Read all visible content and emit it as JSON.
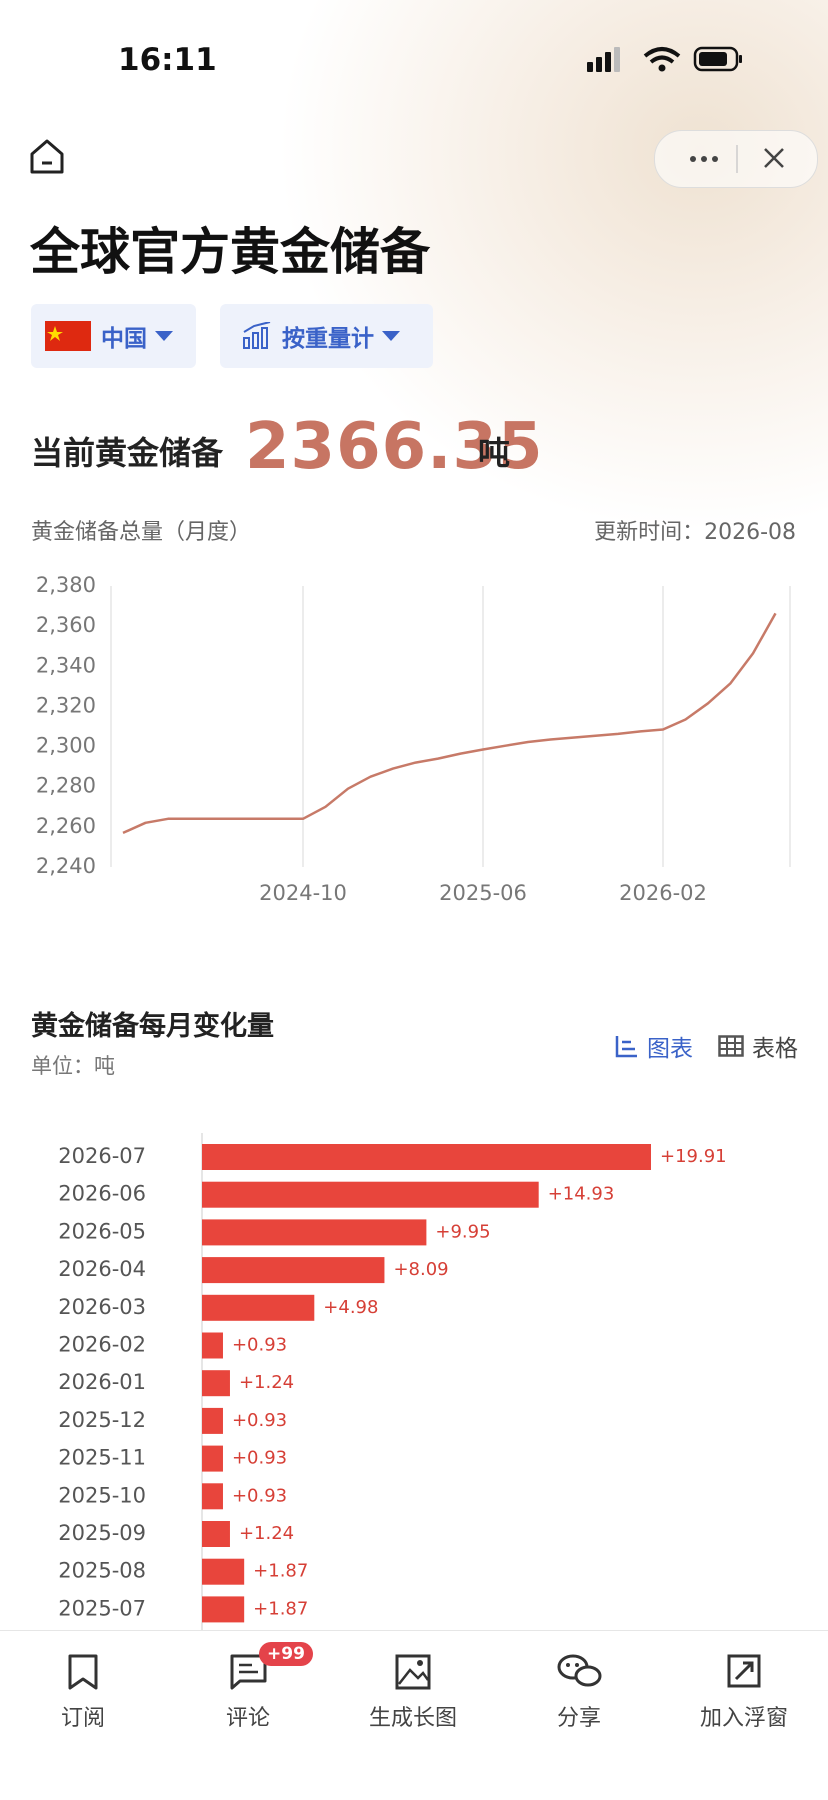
{
  "status_bar": {
    "time": "16:11"
  },
  "header": {
    "title": "全球官方黄金储备",
    "country": "中国",
    "measure": "按重量计"
  },
  "summary": {
    "label": "当前黄金储备",
    "value": 2366.35,
    "unit": "吨"
  },
  "view_toggle": {
    "chart": "图表",
    "table": "表格"
  },
  "nav": {
    "items": [
      "订阅",
      "评论",
      "生成长图",
      "分享",
      "加入浮窗"
    ],
    "badge": "+99"
  },
  "chart_data": [
    {
      "type": "line",
      "title": "黄金储备总量（月度）",
      "subtitle": "更新时间：2026-08",
      "categories": [
        null,
        null,
        null,
        null,
        null,
        null,
        null,
        null,
        "2024-10",
        null,
        null,
        null,
        null,
        null,
        null,
        null,
        "2025-06",
        null,
        null,
        null,
        null,
        null,
        null,
        null,
        "2026-02",
        null,
        null,
        null,
        null,
        null
      ],
      "values": [
        2257,
        2262,
        2264,
        2264,
        2264,
        2264,
        2264,
        2264,
        2264,
        2270,
        2279,
        2285,
        2289,
        2292,
        2294,
        2296.5,
        2298.55,
        2300.42,
        2302.29,
        2303.53,
        2304.46,
        2305.39,
        2306.32,
        2307.56,
        2308.49,
        2313.47,
        2321.56,
        2331.51,
        2346.44,
        2366.35
      ],
      "color": "#c77a68",
      "ylim": [
        2240,
        2380
      ],
      "yticks": [
        {
          "value": 2240,
          "label": "2,240"
        },
        {
          "value": 2260,
          "label": "2,260"
        },
        {
          "value": 2280,
          "label": "2,280"
        },
        {
          "value": 2300,
          "label": "2,300"
        },
        {
          "value": 2320,
          "label": "2,320"
        },
        {
          "value": 2340,
          "label": "2,340"
        },
        {
          "value": 2360,
          "label": "2,360"
        },
        {
          "value": 2380,
          "label": "2,380"
        }
      ],
      "grid": true
    },
    {
      "type": "hbar",
      "title": "黄金储备每月变化量",
      "subtitle": "单位：吨",
      "categories": [
        "2026-07",
        "2026-06",
        "2026-05",
        "2026-04",
        "2026-03",
        "2026-02",
        "2026-01",
        "2025-12",
        "2025-11",
        "2025-10",
        "2025-09",
        "2025-08",
        "2025-07"
      ],
      "values": [
        19.91,
        14.93,
        9.95,
        8.09,
        4.98,
        0.93,
        1.24,
        0.93,
        0.93,
        0.93,
        1.24,
        1.87,
        1.87
      ],
      "value_labels": [
        "+19.91",
        "+14.93",
        "+9.95",
        "+8.09",
        "+4.98",
        "+0.93",
        "+1.24",
        "+0.93",
        "+0.93",
        "+0.93",
        "+1.24",
        "+1.87",
        "+1.87"
      ],
      "color": "#e8453c"
    }
  ]
}
